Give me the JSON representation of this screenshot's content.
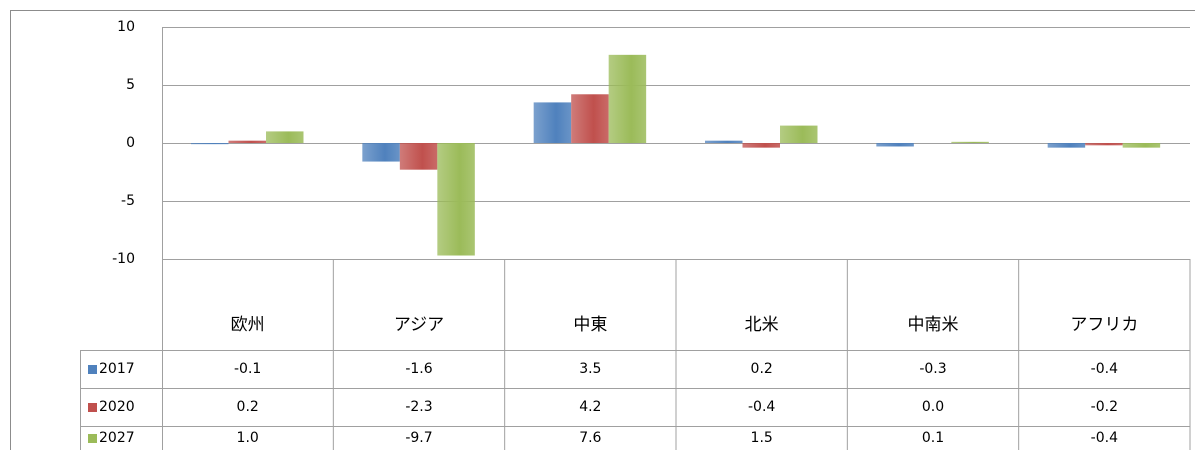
{
  "chart_data": {
    "type": "bar",
    "categories": [
      "欧州",
      "アジア",
      "中東",
      "北米",
      "中南米",
      "アフリカ"
    ],
    "series": [
      {
        "name": "2017",
        "color": "#4f81bd",
        "values": [
          -0.1,
          -1.6,
          3.5,
          0.2,
          -0.3,
          -0.4
        ],
        "value_labels": [
          "-0.1",
          "-1.6",
          "3.5",
          "0.2",
          "-0.3",
          "-0.4"
        ]
      },
      {
        "name": "2020",
        "color": "#c0504d",
        "values": [
          0.2,
          -2.3,
          4.2,
          -0.4,
          0,
          -0.2
        ],
        "value_labels": [
          "0.2",
          "-2.3",
          "4.2",
          "-0.4",
          "0.0",
          "-0.2"
        ]
      },
      {
        "name": "2027",
        "color": "#9bbb59",
        "values": [
          1,
          -9.7,
          7.6,
          1.5,
          0.1,
          -0.4
        ],
        "value_labels": [
          "1.0",
          "-9.7",
          "7.6",
          "1.5",
          "0.1",
          "-0.4"
        ]
      }
    ],
    "ylim": [
      -10,
      10
    ],
    "yticks": [
      10,
      5,
      0,
      -5,
      -10
    ],
    "grid": true
  }
}
